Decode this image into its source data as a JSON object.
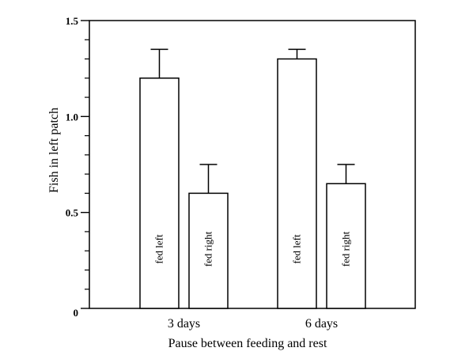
{
  "chart_data": {
    "type": "bar",
    "xlabel": "Pause between feeding and rest",
    "ylabel": "Fish in left patch",
    "ylim": [
      0,
      1.5
    ],
    "yticks": [
      "0",
      "0.5",
      "1.0",
      "1.5"
    ],
    "categories": [
      "3 days",
      "6 days"
    ],
    "series": [
      {
        "name": "fed left",
        "values": [
          1.2,
          1.3
        ],
        "errors": [
          0.15,
          0.05
        ]
      },
      {
        "name": "fed right",
        "values": [
          0.6,
          0.65
        ],
        "errors": [
          0.15,
          0.1
        ]
      }
    ],
    "grid": false,
    "legend": "labels inside bars"
  }
}
